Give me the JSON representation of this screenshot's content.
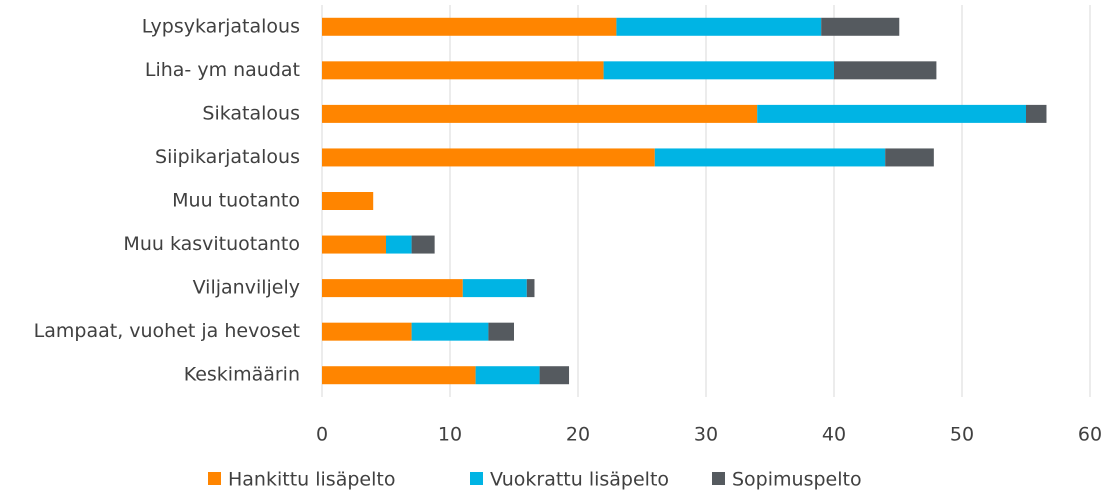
{
  "chart_data": {
    "type": "stacked_barh",
    "categories": [
      "Lypsykarjatalous",
      "Liha- ym naudat",
      "Sikatalous",
      "Siipikarjatalous",
      "Muu tuotanto",
      "Muu kasvituotanto",
      "Viljanviljely",
      "Lampaat, vuohet ja hevoset",
      "Keskimäärin"
    ],
    "series": [
      {
        "name": "Hankittu lisäpelto",
        "color": "#ff8500",
        "values": [
          23,
          22,
          34,
          26,
          4,
          5,
          11,
          7,
          12
        ]
      },
      {
        "name": "Vuokrattu lisäpelto",
        "color": "#00b4e4",
        "values": [
          16,
          18,
          21,
          18,
          0,
          2,
          5,
          6,
          5
        ]
      },
      {
        "name": "Sopimuspelto",
        "color": "#555a5f",
        "values": [
          6.1,
          8,
          1.6,
          3.8,
          0,
          1.8,
          0.6,
          2,
          2.3
        ]
      }
    ],
    "xlim": [
      0,
      60
    ],
    "xticks": [
      0,
      10,
      20,
      30,
      40,
      50,
      60
    ],
    "grid": true,
    "legend": "bottom"
  }
}
